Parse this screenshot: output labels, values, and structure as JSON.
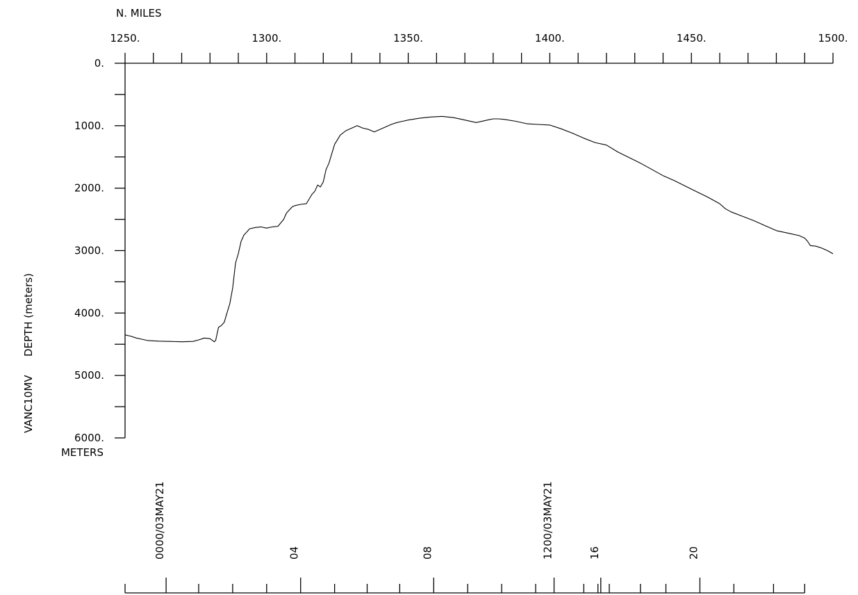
{
  "chart_data": {
    "type": "line",
    "title": "",
    "top_axis": {
      "label": "N. MILES",
      "range": [
        1250,
        1500
      ],
      "tick_labels": [
        "1250.",
        "1300.",
        "1350.",
        "1400.",
        "1450.",
        "1500."
      ],
      "tick_values": [
        1250,
        1300,
        1350,
        1400,
        1450,
        1500
      ],
      "minor_tick_step": 10
    },
    "left_axis": {
      "label_ship": "VANC10MV",
      "label_quantity": "DEPTH  (meters)",
      "units_label": "METERS",
      "range": [
        0,
        6000
      ],
      "inverted": true,
      "tick_labels": [
        "0.",
        "1000.",
        "2000.",
        "3000.",
        "4000.",
        "5000.",
        "6000."
      ],
      "tick_values": [
        0,
        1000,
        2000,
        3000,
        4000,
        5000,
        6000
      ],
      "minor_tick_step": 500
    },
    "time_axis": {
      "labels": [
        {
          "text": "0000/03MAY21",
          "mile": 1264.5,
          "major": true
        },
        {
          "text": "04",
          "mile": 1312,
          "major": false
        },
        {
          "text": "08",
          "mile": 1359,
          "major": false
        },
        {
          "text": "1200/03MAY21",
          "mile": 1401.5,
          "major": true
        },
        {
          "text": "16",
          "mile": 1418,
          "major": false
        },
        {
          "text": "20",
          "mile": 1453,
          "major": false
        }
      ],
      "tick_miles": [
        1250,
        1264.5,
        1276,
        1288,
        1300,
        1312,
        1324,
        1335.5,
        1347,
        1359,
        1371,
        1383,
        1395,
        1401.5,
        1412,
        1417,
        1418,
        1421,
        1432,
        1441,
        1453,
        1465,
        1479,
        1490
      ],
      "major_tick_miles": [
        1264.5,
        1312,
        1359,
        1401.5,
        1418,
        1453
      ]
    },
    "series": [
      {
        "x": [
          1250,
          1252,
          1254,
          1256,
          1258,
          1262,
          1266,
          1270,
          1274,
          1276,
          1278,
          1280,
          1281.5,
          1282,
          1283,
          1284,
          1285,
          1286,
          1287,
          1288,
          1289,
          1290,
          1291,
          1292,
          1293,
          1294,
          1296,
          1298,
          1300,
          1302,
          1304,
          1306,
          1307,
          1308,
          1309,
          1310,
          1312,
          1314,
          1316,
          1317,
          1318,
          1319,
          1320,
          1321,
          1322,
          1323,
          1324,
          1326,
          1328,
          1330,
          1332,
          1333,
          1334,
          1336,
          1338,
          1340,
          1342,
          1344,
          1346,
          1348,
          1350,
          1354,
          1358,
          1362,
          1366,
          1370,
          1374,
          1378,
          1380,
          1382,
          1384,
          1388,
          1392,
          1396,
          1400,
          1404,
          1408,
          1412,
          1416,
          1420,
          1424,
          1428,
          1432,
          1436,
          1440,
          1444,
          1448,
          1452,
          1456,
          1460,
          1462,
          1464,
          1468,
          1472,
          1476,
          1480,
          1484,
          1488,
          1490,
          1491,
          1492,
          1494,
          1496,
          1498,
          1500
        ],
        "y": [
          4350,
          4370,
          4400,
          4420,
          4440,
          4450,
          4455,
          4460,
          4455,
          4430,
          4400,
          4410,
          4460,
          4440,
          4230,
          4200,
          4150,
          4000,
          3850,
          3600,
          3200,
          3050,
          2850,
          2750,
          2700,
          2650,
          2630,
          2620,
          2640,
          2620,
          2610,
          2500,
          2400,
          2350,
          2300,
          2280,
          2260,
          2250,
          2100,
          2050,
          1950,
          1980,
          1900,
          1700,
          1600,
          1450,
          1300,
          1150,
          1080,
          1040,
          1000,
          1020,
          1040,
          1060,
          1100,
          1060,
          1020,
          980,
          950,
          930,
          910,
          880,
          860,
          850,
          870,
          910,
          950,
          910,
          890,
          890,
          900,
          930,
          970,
          980,
          990,
          1050,
          1120,
          1200,
          1270,
          1310,
          1420,
          1510,
          1600,
          1700,
          1800,
          1880,
          1970,
          2060,
          2150,
          2250,
          2330,
          2380,
          2450,
          2520,
          2600,
          2680,
          2720,
          2760,
          2800,
          2850,
          2920,
          2930,
          2960,
          3000,
          3050
        ]
      }
    ]
  }
}
